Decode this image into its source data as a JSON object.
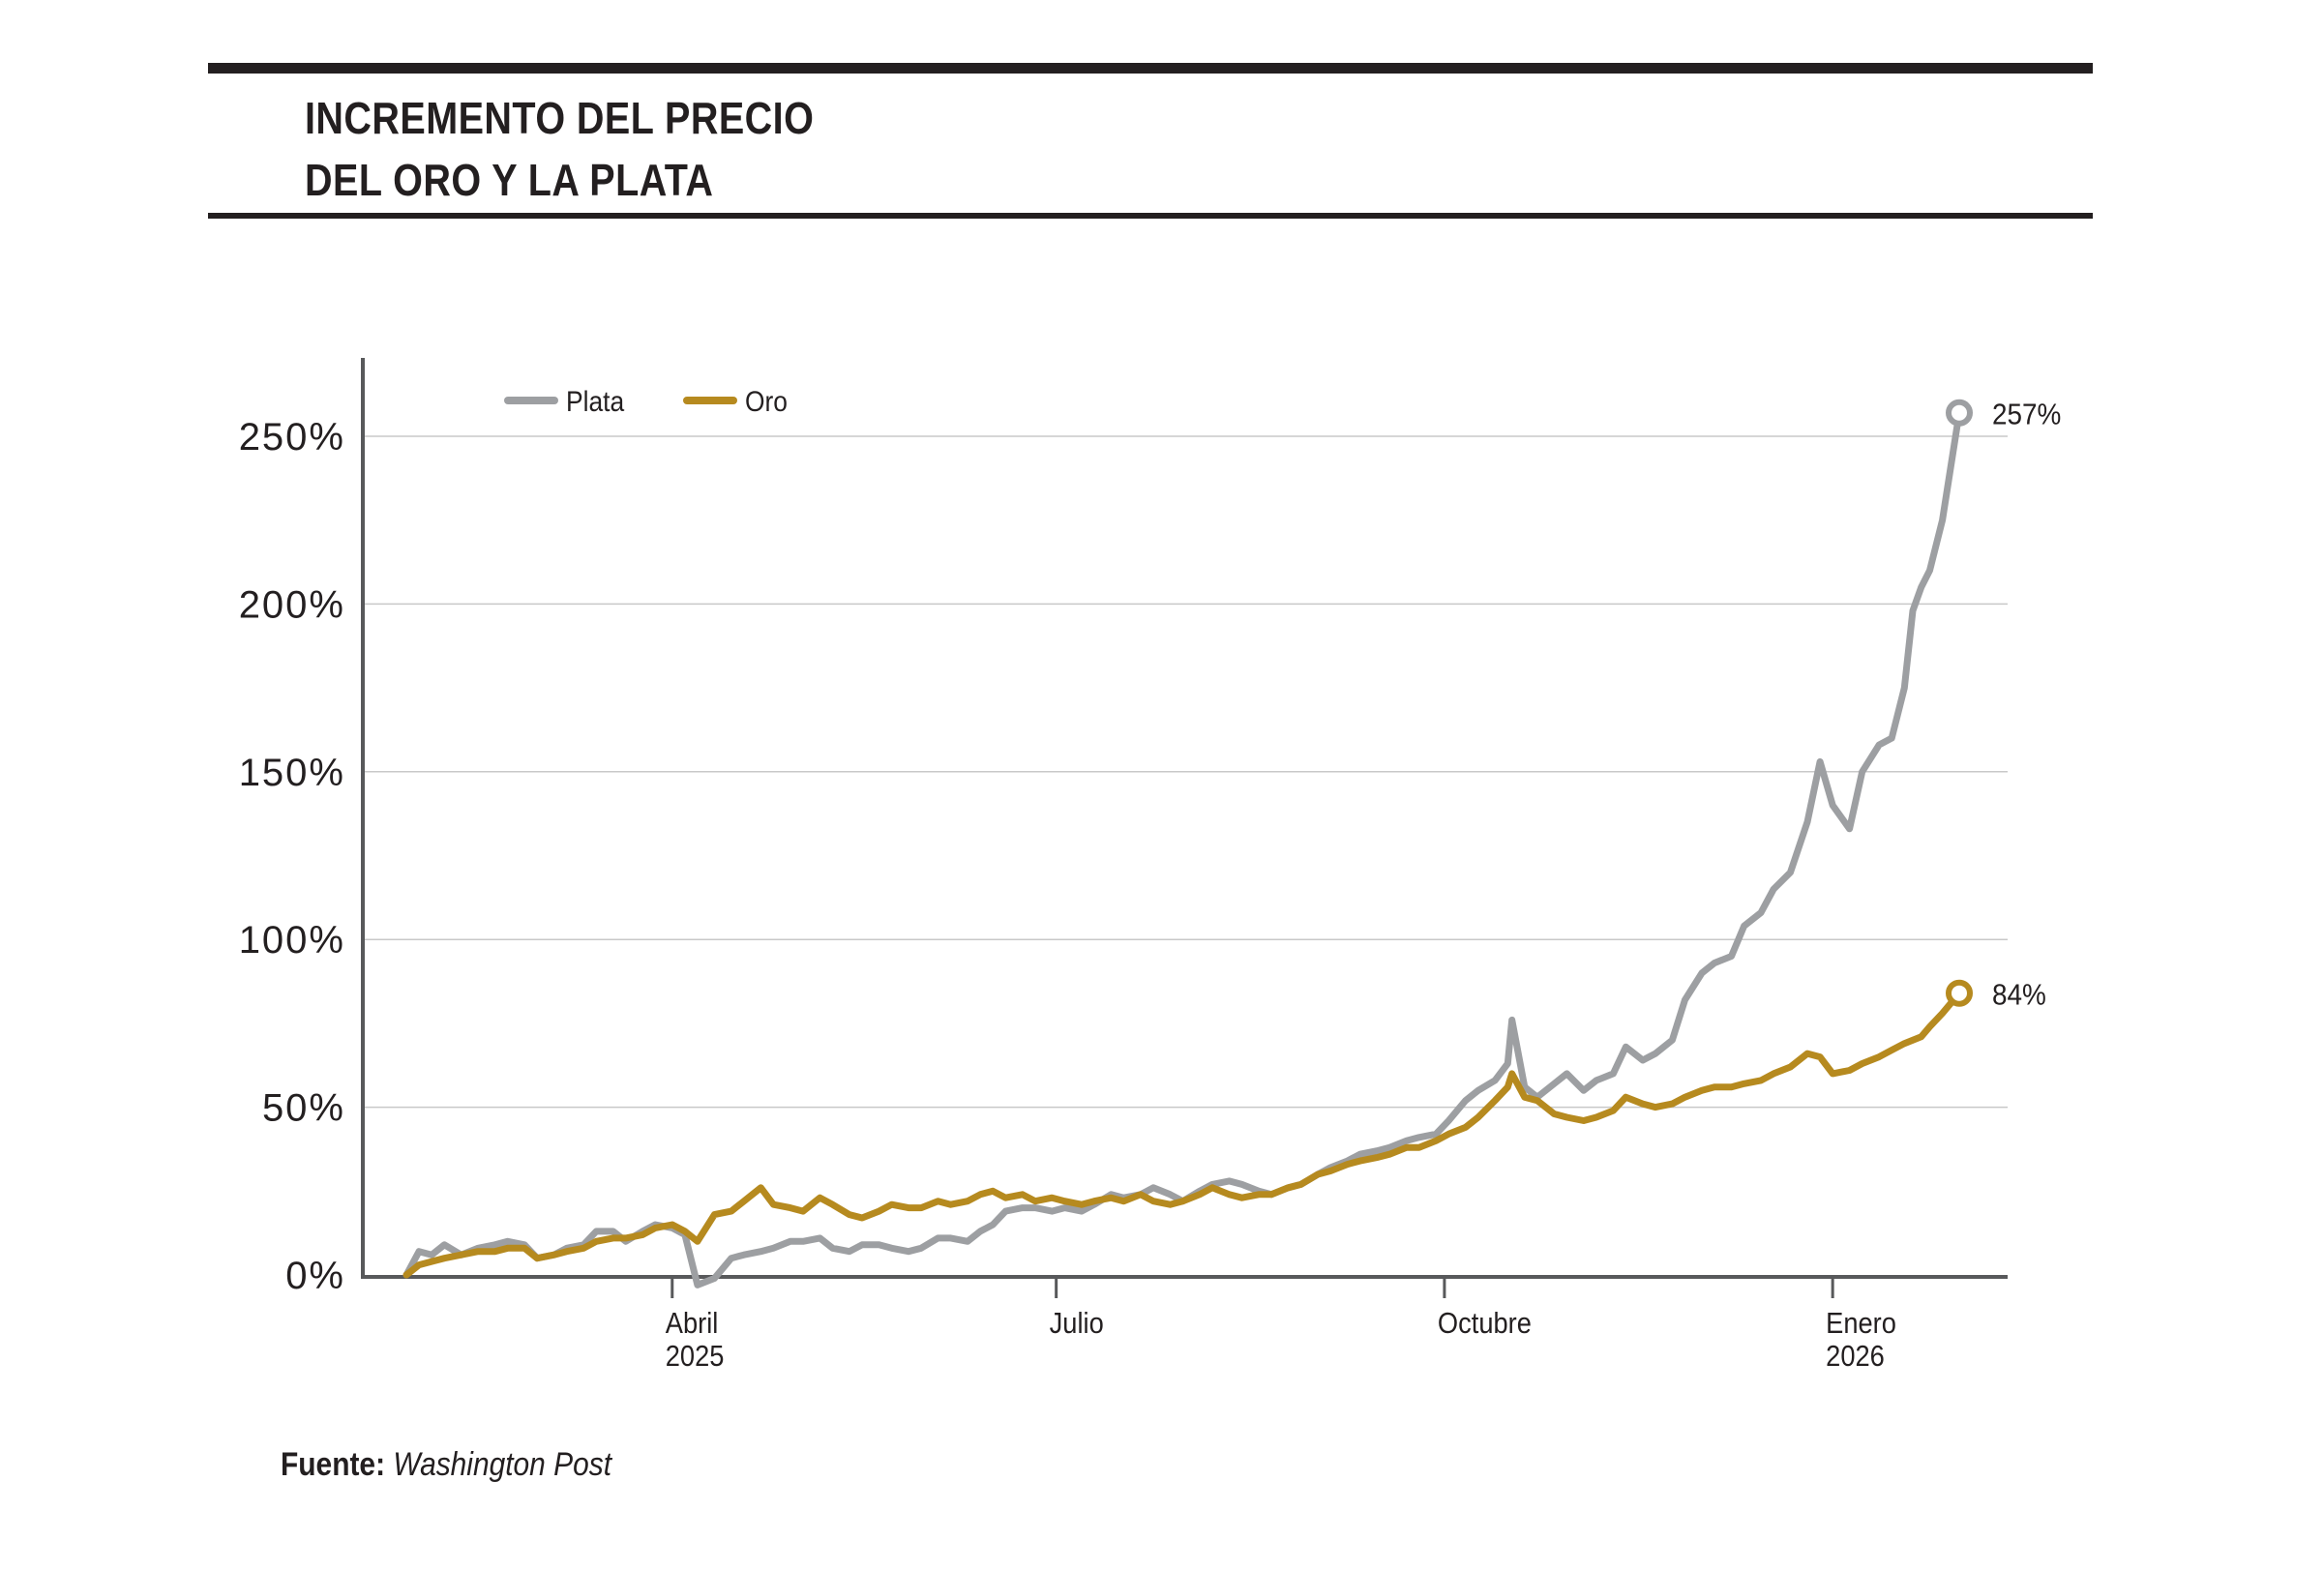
{
  "title": {
    "line1": "INCREMENTO DEL PRECIO",
    "line2": "DEL ORO Y LA PLATA"
  },
  "source": {
    "label": "Fuente:",
    "name": "Washington Post"
  },
  "colors": {
    "plata": "#9d9fa2",
    "oro": "#b68a1f",
    "axis": "#58595b",
    "grid": "#c8c8c8",
    "text": "#231f20"
  },
  "chart_data": {
    "type": "line",
    "title": "INCREMENTO DEL PRECIO DEL ORO Y LA PLATA",
    "xlabel": "",
    "ylabel": "",
    "x_range": [
      "2025-01-28",
      "2026-01-31"
    ],
    "ylim": [
      0,
      270
    ],
    "grid": true,
    "legend_position": "top-left",
    "y_ticks": [
      0,
      50,
      100,
      150,
      200,
      250
    ],
    "y_tick_labels": [
      "0%",
      "50%",
      "100%",
      "150%",
      "200%",
      "250%"
    ],
    "x_ticks": [
      {
        "date": "2025-04-01",
        "label": [
          "Abril",
          "2025"
        ]
      },
      {
        "date": "2025-07-01",
        "label": [
          "Julio"
        ]
      },
      {
        "date": "2025-10-01",
        "label": [
          "Octubre"
        ]
      },
      {
        "date": "2026-01-01",
        "label": [
          "Enero",
          "2026"
        ]
      }
    ],
    "series": [
      {
        "name": "Plata",
        "color": "#9d9fa2",
        "end_label": "257%",
        "points": [
          [
            "2025-01-28",
            0
          ],
          [
            "2025-01-31",
            7
          ],
          [
            "2025-02-03",
            6
          ],
          [
            "2025-02-06",
            9
          ],
          [
            "2025-02-10",
            6
          ],
          [
            "2025-02-14",
            8
          ],
          [
            "2025-02-18",
            9
          ],
          [
            "2025-02-21",
            10
          ],
          [
            "2025-02-25",
            9
          ],
          [
            "2025-02-28",
            5
          ],
          [
            "2025-03-04",
            6
          ],
          [
            "2025-03-07",
            8
          ],
          [
            "2025-03-11",
            9
          ],
          [
            "2025-03-14",
            13
          ],
          [
            "2025-03-18",
            13
          ],
          [
            "2025-03-21",
            10
          ],
          [
            "2025-03-25",
            13
          ],
          [
            "2025-03-28",
            15
          ],
          [
            "2025-04-01",
            14
          ],
          [
            "2025-04-04",
            12
          ],
          [
            "2025-04-07",
            -3
          ],
          [
            "2025-04-11",
            -1
          ],
          [
            "2025-04-15",
            5
          ],
          [
            "2025-04-18",
            6
          ],
          [
            "2025-04-22",
            7
          ],
          [
            "2025-04-25",
            8
          ],
          [
            "2025-04-29",
            10
          ],
          [
            "2025-05-02",
            10
          ],
          [
            "2025-05-06",
            11
          ],
          [
            "2025-05-09",
            8
          ],
          [
            "2025-05-13",
            7
          ],
          [
            "2025-05-16",
            9
          ],
          [
            "2025-05-20",
            9
          ],
          [
            "2025-05-23",
            8
          ],
          [
            "2025-05-27",
            7
          ],
          [
            "2025-05-30",
            8
          ],
          [
            "2025-06-03",
            11
          ],
          [
            "2025-06-06",
            11
          ],
          [
            "2025-06-10",
            10
          ],
          [
            "2025-06-13",
            13
          ],
          [
            "2025-06-16",
            15
          ],
          [
            "2025-06-19",
            19
          ],
          [
            "2025-06-23",
            20
          ],
          [
            "2025-06-26",
            20
          ],
          [
            "2025-06-30",
            19
          ],
          [
            "2025-07-03",
            20
          ],
          [
            "2025-07-07",
            19
          ],
          [
            "2025-07-10",
            21
          ],
          [
            "2025-07-14",
            24
          ],
          [
            "2025-07-17",
            23
          ],
          [
            "2025-07-21",
            24
          ],
          [
            "2025-07-24",
            26
          ],
          [
            "2025-07-28",
            24
          ],
          [
            "2025-07-31",
            22
          ],
          [
            "2025-08-04",
            25
          ],
          [
            "2025-08-07",
            27
          ],
          [
            "2025-08-11",
            28
          ],
          [
            "2025-08-14",
            27
          ],
          [
            "2025-08-18",
            25
          ],
          [
            "2025-08-21",
            24
          ],
          [
            "2025-08-25",
            26
          ],
          [
            "2025-08-28",
            27
          ],
          [
            "2025-09-01",
            30
          ],
          [
            "2025-09-04",
            32
          ],
          [
            "2025-09-08",
            34
          ],
          [
            "2025-09-11",
            36
          ],
          [
            "2025-09-15",
            37
          ],
          [
            "2025-09-18",
            38
          ],
          [
            "2025-09-22",
            40
          ],
          [
            "2025-09-25",
            41
          ],
          [
            "2025-09-29",
            42
          ],
          [
            "2025-10-02",
            46
          ],
          [
            "2025-10-06",
            52
          ],
          [
            "2025-10-09",
            55
          ],
          [
            "2025-10-13",
            58
          ],
          [
            "2025-10-16",
            63
          ],
          [
            "2025-10-17",
            76
          ],
          [
            "2025-10-20",
            56
          ],
          [
            "2025-10-23",
            53
          ],
          [
            "2025-10-27",
            57
          ],
          [
            "2025-10-30",
            60
          ],
          [
            "2025-11-03",
            55
          ],
          [
            "2025-11-06",
            58
          ],
          [
            "2025-11-10",
            60
          ],
          [
            "2025-11-13",
            68
          ],
          [
            "2025-11-17",
            64
          ],
          [
            "2025-11-20",
            66
          ],
          [
            "2025-11-24",
            70
          ],
          [
            "2025-11-27",
            82
          ],
          [
            "2025-12-01",
            90
          ],
          [
            "2025-12-04",
            93
          ],
          [
            "2025-12-08",
            95
          ],
          [
            "2025-12-11",
            104
          ],
          [
            "2025-12-15",
            108
          ],
          [
            "2025-12-18",
            115
          ],
          [
            "2025-12-22",
            120
          ],
          [
            "2025-12-26",
            135
          ],
          [
            "2025-12-29",
            153
          ],
          [
            "2026-01-01",
            140
          ],
          [
            "2026-01-05",
            133
          ],
          [
            "2026-01-08",
            150
          ],
          [
            "2026-01-12",
            158
          ],
          [
            "2026-01-15",
            160
          ],
          [
            "2026-01-18",
            175
          ],
          [
            "2026-01-20",
            198
          ],
          [
            "2026-01-22",
            205
          ],
          [
            "2026-01-24",
            210
          ],
          [
            "2026-01-27",
            225
          ],
          [
            "2026-01-31",
            257
          ]
        ]
      },
      {
        "name": "Oro",
        "color": "#b68a1f",
        "end_label": "84%",
        "points": [
          [
            "2025-01-28",
            0
          ],
          [
            "2025-01-31",
            3
          ],
          [
            "2025-02-03",
            4
          ],
          [
            "2025-02-06",
            5
          ],
          [
            "2025-02-10",
            6
          ],
          [
            "2025-02-14",
            7
          ],
          [
            "2025-02-18",
            7
          ],
          [
            "2025-02-21",
            8
          ],
          [
            "2025-02-25",
            8
          ],
          [
            "2025-02-28",
            5
          ],
          [
            "2025-03-04",
            6
          ],
          [
            "2025-03-07",
            7
          ],
          [
            "2025-03-11",
            8
          ],
          [
            "2025-03-14",
            10
          ],
          [
            "2025-03-18",
            11
          ],
          [
            "2025-03-21",
            11
          ],
          [
            "2025-03-25",
            12
          ],
          [
            "2025-03-28",
            14
          ],
          [
            "2025-04-01",
            15
          ],
          [
            "2025-04-04",
            13
          ],
          [
            "2025-04-07",
            10
          ],
          [
            "2025-04-11",
            18
          ],
          [
            "2025-04-15",
            19
          ],
          [
            "2025-04-18",
            22
          ],
          [
            "2025-04-22",
            26
          ],
          [
            "2025-04-25",
            21
          ],
          [
            "2025-04-29",
            20
          ],
          [
            "2025-05-02",
            19
          ],
          [
            "2025-05-06",
            23
          ],
          [
            "2025-05-09",
            21
          ],
          [
            "2025-05-13",
            18
          ],
          [
            "2025-05-16",
            17
          ],
          [
            "2025-05-20",
            19
          ],
          [
            "2025-05-23",
            21
          ],
          [
            "2025-05-27",
            20
          ],
          [
            "2025-05-30",
            20
          ],
          [
            "2025-06-03",
            22
          ],
          [
            "2025-06-06",
            21
          ],
          [
            "2025-06-10",
            22
          ],
          [
            "2025-06-13",
            24
          ],
          [
            "2025-06-16",
            25
          ],
          [
            "2025-06-19",
            23
          ],
          [
            "2025-06-23",
            24
          ],
          [
            "2025-06-26",
            22
          ],
          [
            "2025-06-30",
            23
          ],
          [
            "2025-07-03",
            22
          ],
          [
            "2025-07-07",
            21
          ],
          [
            "2025-07-10",
            22
          ],
          [
            "2025-07-14",
            23
          ],
          [
            "2025-07-17",
            22
          ],
          [
            "2025-07-21",
            24
          ],
          [
            "2025-07-24",
            22
          ],
          [
            "2025-07-28",
            21
          ],
          [
            "2025-07-31",
            22
          ],
          [
            "2025-08-04",
            24
          ],
          [
            "2025-08-07",
            26
          ],
          [
            "2025-08-11",
            24
          ],
          [
            "2025-08-14",
            23
          ],
          [
            "2025-08-18",
            24
          ],
          [
            "2025-08-21",
            24
          ],
          [
            "2025-08-25",
            26
          ],
          [
            "2025-08-28",
            27
          ],
          [
            "2025-09-01",
            30
          ],
          [
            "2025-09-04",
            31
          ],
          [
            "2025-09-08",
            33
          ],
          [
            "2025-09-11",
            34
          ],
          [
            "2025-09-15",
            35
          ],
          [
            "2025-09-18",
            36
          ],
          [
            "2025-09-22",
            38
          ],
          [
            "2025-09-25",
            38
          ],
          [
            "2025-09-29",
            40
          ],
          [
            "2025-10-02",
            42
          ],
          [
            "2025-10-06",
            44
          ],
          [
            "2025-10-09",
            47
          ],
          [
            "2025-10-13",
            52
          ],
          [
            "2025-10-16",
            56
          ],
          [
            "2025-10-17",
            60
          ],
          [
            "2025-10-20",
            53
          ],
          [
            "2025-10-23",
            52
          ],
          [
            "2025-10-27",
            48
          ],
          [
            "2025-10-30",
            47
          ],
          [
            "2025-11-03",
            46
          ],
          [
            "2025-11-06",
            47
          ],
          [
            "2025-11-10",
            49
          ],
          [
            "2025-11-13",
            53
          ],
          [
            "2025-11-17",
            51
          ],
          [
            "2025-11-20",
            50
          ],
          [
            "2025-11-24",
            51
          ],
          [
            "2025-11-27",
            53
          ],
          [
            "2025-12-01",
            55
          ],
          [
            "2025-12-04",
            56
          ],
          [
            "2025-12-08",
            56
          ],
          [
            "2025-12-11",
            57
          ],
          [
            "2025-12-15",
            58
          ],
          [
            "2025-12-18",
            60
          ],
          [
            "2025-12-22",
            62
          ],
          [
            "2025-12-26",
            66
          ],
          [
            "2025-12-29",
            65
          ],
          [
            "2026-01-01",
            60
          ],
          [
            "2026-01-05",
            61
          ],
          [
            "2026-01-08",
            63
          ],
          [
            "2026-01-12",
            65
          ],
          [
            "2026-01-15",
            67
          ],
          [
            "2026-01-18",
            69
          ],
          [
            "2026-01-20",
            70
          ],
          [
            "2026-01-22",
            71
          ],
          [
            "2026-01-24",
            74
          ],
          [
            "2026-01-27",
            78
          ],
          [
            "2026-01-31",
            84
          ]
        ]
      }
    ]
  }
}
